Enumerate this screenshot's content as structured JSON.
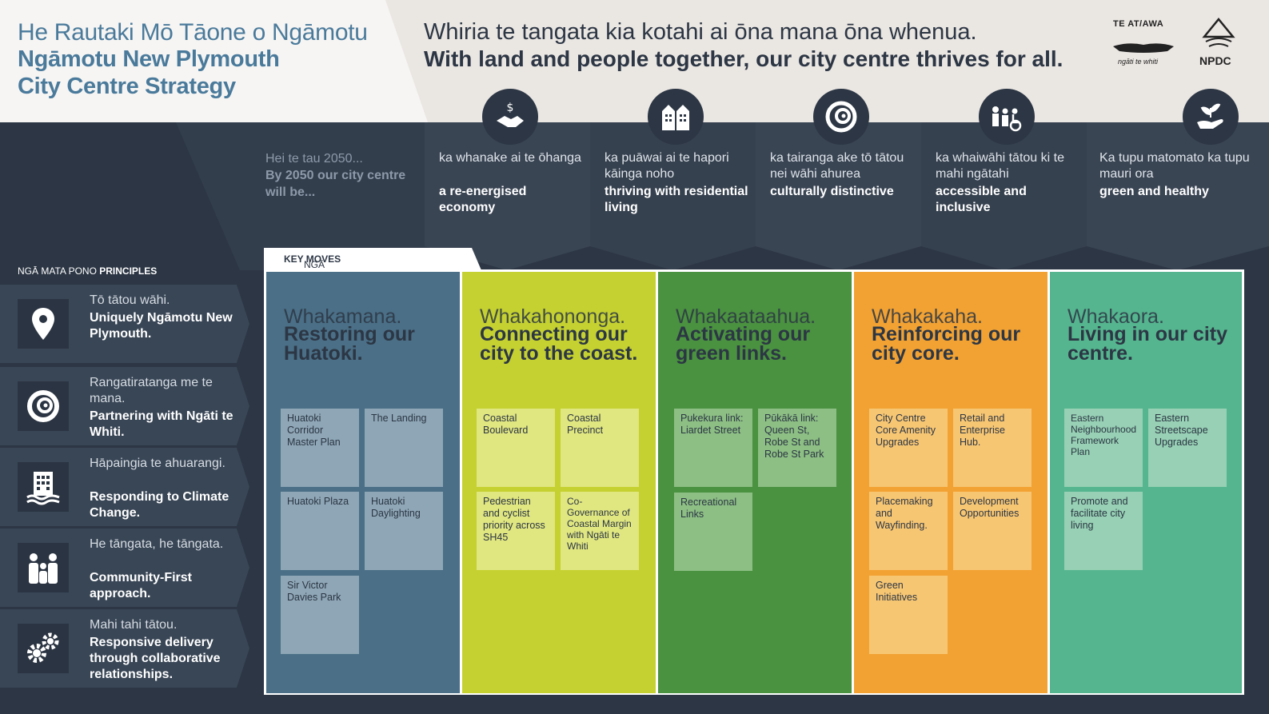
{
  "header": {
    "title_mi": "He Rautaki Mō Tāone o Ngāmotu",
    "title_en_line1": "Ngāmotu New Plymouth",
    "title_en_line2": "City Centre Strategy",
    "tagline_mi": "Whiria te tangata kia kotahi ai ōna mana ōna whenua.",
    "tagline_en": "With land and people together, our city centre thrives for all.",
    "logos": {
      "te_atiawa": "TE AT/AWA",
      "ngati_te_whiti": "ngāti te whiti",
      "npdc": "NPDC"
    }
  },
  "vision": {
    "intro_mi": "Hei te tau 2050...",
    "intro_en": "By 2050 our city centre will be...",
    "outcomes": [
      {
        "mi": "ka whanake ai te ōhanga",
        "en": "a re-energised economy",
        "icon": "money-handshake-icon",
        "color": "#3a4554"
      },
      {
        "mi": "ka puāwai ai te hapori kāinga noho",
        "en": "thriving with residential living",
        "icon": "buildings-icon",
        "color": "#36414f"
      },
      {
        "mi": "ka tairanga ake tō tātou nei wāhi ahurea",
        "en": "culturally distinctive",
        "icon": "koru-icon",
        "color": "#3a4554"
      },
      {
        "mi": "ka whaiwāhi tātou ki te mahi ngātahi",
        "en": "accessible and inclusive",
        "icon": "people-accessibility-icon",
        "color": "#36414f"
      },
      {
        "mi": "Ka tupu matomato ka tupu mauri ora",
        "en": "green and healthy",
        "icon": "hand-plant-icon",
        "color": "#3a4554"
      }
    ]
  },
  "principles": {
    "heading_mi": "NGĀ MATA PONO",
    "heading_en": "PRINCIPLES",
    "items": [
      {
        "mi": "Tō tātou wāhi.",
        "en": "Uniquely Ngāmotu New Plymouth.",
        "icon": "location-pin-icon"
      },
      {
        "mi": "Rangatiratanga me te mana.",
        "en": "Partnering with Ngāti te Whiti.",
        "icon": "koru-icon"
      },
      {
        "mi": "Hāpaingia te ahuarangi.",
        "en": "Responding to Climate Change.",
        "icon": "building-flood-icon"
      },
      {
        "mi": "He tāngata, he tāngata.",
        "en": "Community-First approach.",
        "icon": "family-icon"
      },
      {
        "mi": "Mahi tahi tātou.",
        "en": "Responsive delivery through collaborative relationships.",
        "icon": "gears-icon"
      }
    ]
  },
  "key_moves": {
    "tab_mi": "NGĀ TAKE HAERE",
    "tab_en": "KEY MOVES",
    "columns": [
      {
        "mi": "Whakamana.",
        "en": "Restoring our Huatoki.",
        "color": "#4a6f86",
        "card_color": "#8ea6b6",
        "cards": [
          "Huatoki Corridor Master Plan",
          "The Landing",
          "Huatoki Plaza",
          "Huatoki Daylighting",
          "Sir Victor Davies Park"
        ]
      },
      {
        "mi": "Whakahononga.",
        "en": "Connecting our city to the coast.",
        "color": "#c5d130",
        "card_color": "#e0e680",
        "cards": [
          "Coastal Boulevard",
          "Coastal Precinct",
          "Pedestrian and cyclist priority across SH45",
          "Co-Governance of Coastal Margin with Ngāti te Whiti"
        ]
      },
      {
        "mi": "Whakaataahua.",
        "en": "Activating our green links.",
        "color": "#4a9140",
        "card_color": "#8dbf84",
        "cards": [
          "Pukekura link: Liardet Street",
          "Pūkākā link: Queen St, Robe St and Robe St Park",
          "Recreational Links"
        ]
      },
      {
        "mi": "Whakakaha.",
        "en": "Reinforcing our city core.",
        "color": "#f2a233",
        "card_color": "#f7c673",
        "cards": [
          "City Centre Core Amenity Upgrades",
          "Retail and Enterprise Hub.",
          "Placemaking and Wayfinding.",
          "Development Opportunities",
          "Green Initiatives"
        ]
      },
      {
        "mi": "Whakaora.",
        "en": "Living in our city centre.",
        "color": "#55b58f",
        "card_color": "#97d0b4",
        "cards": [
          "Eastern Neighbourhood Framework Plan",
          "Eastern Streetscape Upgrades",
          "Promote and facilitate city living"
        ]
      }
    ]
  }
}
